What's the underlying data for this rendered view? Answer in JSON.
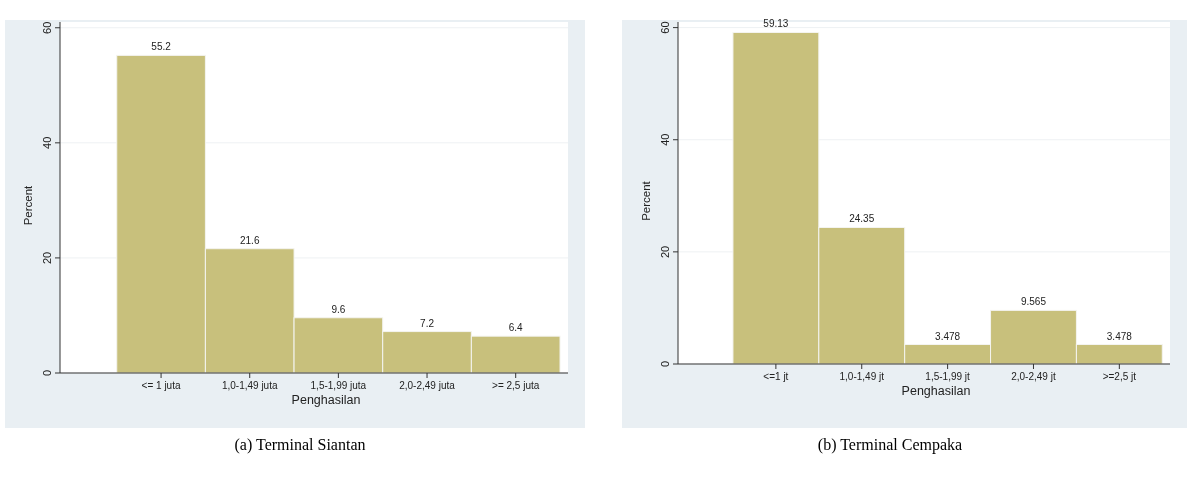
{
  "chart_data": [
    {
      "type": "bar",
      "categories": [
        "<= 1 juta",
        "1,0-1,49 juta",
        "1,5-1,99 juta",
        "2,0-2,49 juta",
        ">= 2,5 juta"
      ],
      "values": [
        55.2,
        21.6,
        9.6,
        7.2,
        6.4
      ],
      "color": "#c8c07c",
      "xlabel": "Penghasilan",
      "ylabel": "Percent",
      "ylim": [
        0,
        61
      ],
      "yticks": [
        0,
        20,
        40,
        60
      ],
      "grid": "y",
      "data_labels": true,
      "annotations": [
        "(a) Terminal Siantan"
      ]
    },
    {
      "type": "bar",
      "categories": [
        "<=1 jt",
        "1,0-1,49 jt",
        "1,5-1,99 jt",
        "2,0-2,49 jt",
        ">=2,5 jt"
      ],
      "values": [
        59.13,
        24.35,
        3.478,
        9.565,
        3.478
      ],
      "color": "#c8c07c",
      "xlabel": "Penghasilan",
      "ylabel": "Percent",
      "ylim": [
        0,
        61
      ],
      "yticks": [
        0,
        20,
        40,
        60
      ],
      "grid": "y",
      "data_labels": true,
      "annotations": [
        "(b) Terminal Cempaka"
      ]
    }
  ]
}
